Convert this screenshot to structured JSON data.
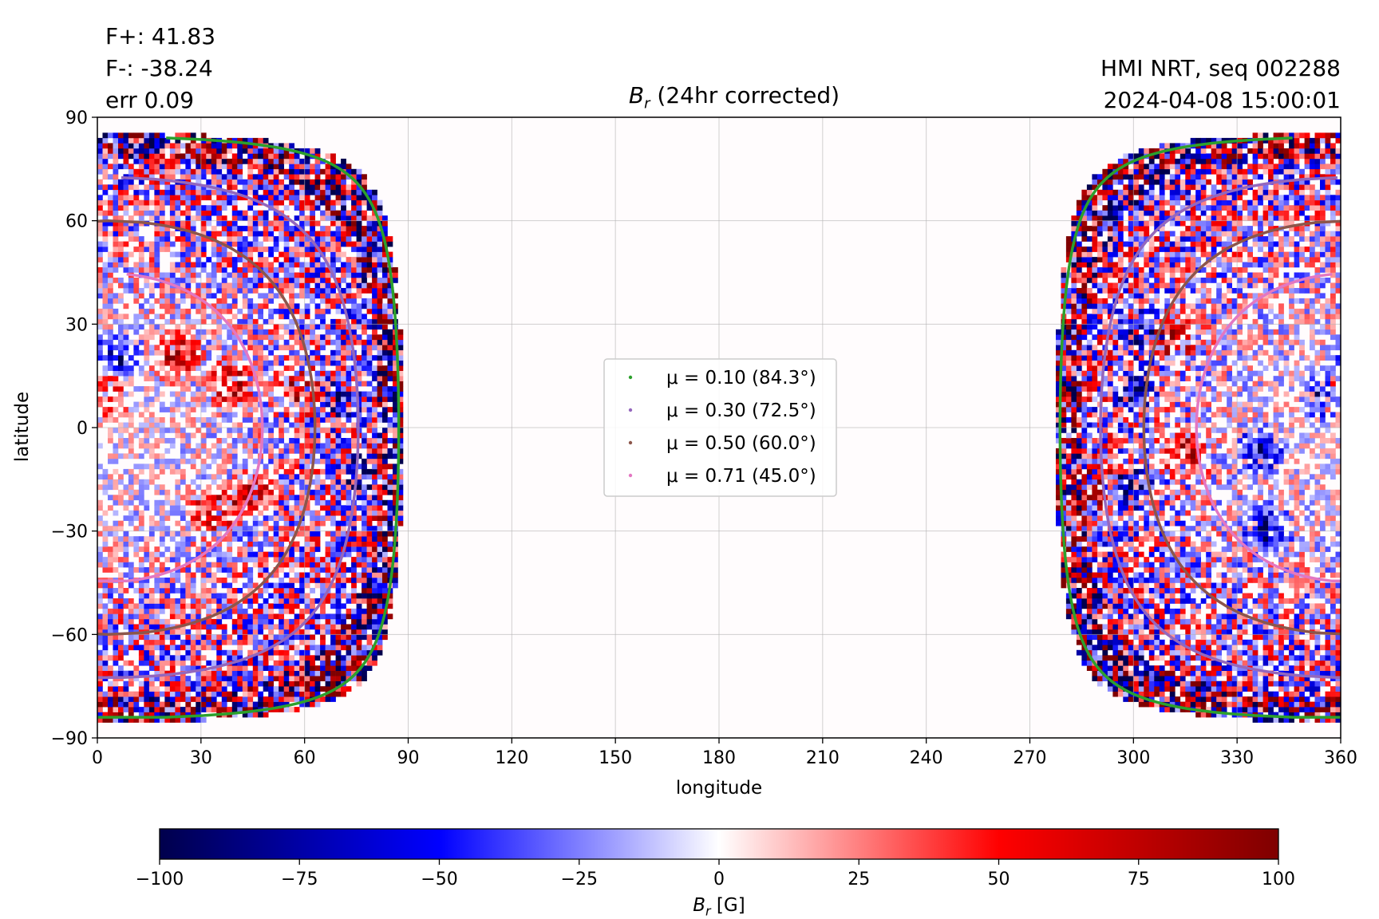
{
  "header": {
    "flux_pos": "F+: 41.83",
    "flux_neg": "F-: -38.24",
    "error": "err 0.09",
    "instrument": "HMI NRT, seq 002288",
    "timestamp": "2024-04-08 15:00:01",
    "title_symbol": "B",
    "title_sub": "r",
    "title_rest": " (24hr corrected)"
  },
  "chart_data": {
    "type": "heatmap",
    "title": "Br (24hr corrected)",
    "xlabel": "longitude",
    "ylabel": "latitude",
    "xlim": [
      0,
      360
    ],
    "ylim": [
      -90,
      90
    ],
    "xticks": [
      0,
      30,
      60,
      90,
      120,
      150,
      180,
      210,
      240,
      270,
      300,
      330,
      360
    ],
    "yticks": [
      -90,
      -60,
      -30,
      0,
      30,
      60,
      90
    ],
    "ytick_labels": [
      "−90",
      "−60",
      "−30",
      "0",
      "30",
      "60",
      "90"
    ],
    "grid": true,
    "legend_placement": "center",
    "disk_center_longitude": 3,
    "contours": [
      {
        "label": "μ = 0.10 (84.3°)",
        "mu": 0.1,
        "angle_deg": 84.3,
        "color": "#2ca02c"
      },
      {
        "label": "μ = 0.30 (72.5°)",
        "mu": 0.3,
        "angle_deg": 72.5,
        "color": "#9467bd"
      },
      {
        "label": "μ = 0.50 (60.0°)",
        "mu": 0.5,
        "angle_deg": 60.0,
        "color": "#8c564b"
      },
      {
        "label": "μ = 0.71 (45.0°)",
        "mu": 0.71,
        "angle_deg": 45.0,
        "color": "#e377c2"
      }
    ],
    "colorbar": {
      "label_symbol": "B",
      "label_sub": "r",
      "label_unit": " [G]",
      "range": [
        -100,
        100
      ],
      "ticks": [
        -100,
        -75,
        -50,
        -25,
        0,
        25,
        50,
        75,
        100
      ],
      "tick_labels": [
        "−100",
        "−75",
        "−50",
        "−25",
        "0",
        "25",
        "50",
        "75",
        "100"
      ],
      "colormap": "seismic",
      "colors": [
        "#00004c",
        "#0000ff",
        "#ffffff",
        "#ff0000",
        "#7f0000"
      ]
    },
    "active_regions": [
      {
        "lon": 5,
        "lat": 20,
        "sign": "negative"
      },
      {
        "lon": 2,
        "lat": 8,
        "sign": "positive"
      },
      {
        "lon": 22,
        "lat": 20,
        "sign": "positive"
      },
      {
        "lon": 38,
        "lat": 12,
        "sign": "positive"
      },
      {
        "lon": 45,
        "lat": -20,
        "sign": "positive"
      },
      {
        "lon": 33,
        "lat": -25,
        "sign": "positive"
      },
      {
        "lon": 58,
        "lat": 10,
        "sign": "positive"
      },
      {
        "lon": 70,
        "lat": 6,
        "sign": "negative"
      },
      {
        "lon": 76,
        "lat": -15,
        "sign": "negative"
      },
      {
        "lon": 302,
        "lat": 26,
        "sign": "negative"
      },
      {
        "lon": 310,
        "lat": 25,
        "sign": "positive"
      },
      {
        "lon": 315,
        "lat": -8,
        "sign": "positive"
      },
      {
        "lon": 300,
        "lat": 10,
        "sign": "negative"
      },
      {
        "lon": 298,
        "lat": -18,
        "sign": "negative"
      },
      {
        "lon": 290,
        "lat": -18,
        "sign": "positive"
      },
      {
        "lon": 338,
        "lat": -30,
        "sign": "negative"
      },
      {
        "lon": 355,
        "lat": 8,
        "sign": "negative"
      },
      {
        "lon": 336,
        "lat": -8,
        "sign": "negative"
      }
    ]
  }
}
